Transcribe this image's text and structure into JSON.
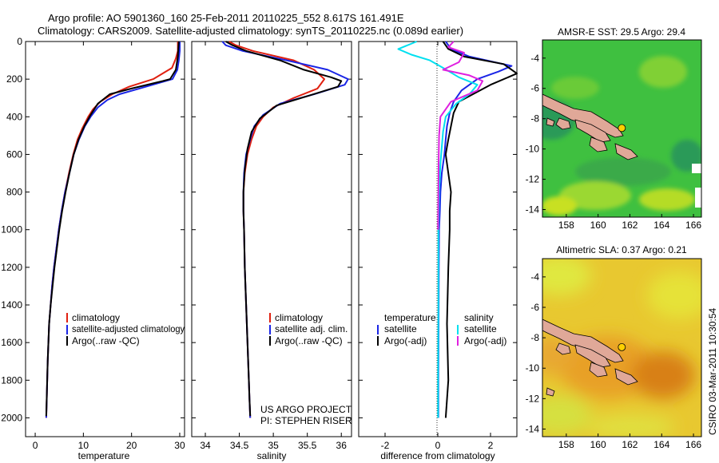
{
  "header": {
    "title_line1": "Argo profile: AO 5901360_160 25-Feb-2011 20110225_552 8.617S 161.491E",
    "title_line2": "Climatology: CARS2009. Satellite-adjusted climatology: synTS_20110225.nc (0.089d earlier)"
  },
  "footer": {
    "stamp": "CSIRO 03-Mar-2011 10:30:54"
  },
  "colors": {
    "climatology": "#e02010",
    "satellite": "#1a25e6",
    "argo": "#000000",
    "sat_salinity": "#00e0f0",
    "argo_salinity": "#e020e0",
    "coast": "#000000",
    "island_fill": "#e0a898"
  },
  "chart_data": [
    {
      "type": "line",
      "xlabel": "temperature",
      "ylabel": "",
      "xlim": [
        -2,
        31
      ],
      "ylim": [
        0,
        2100
      ],
      "xticks": [
        "0",
        "10",
        "20",
        "30"
      ],
      "yticks": [
        "0",
        "200",
        "400",
        "600",
        "800",
        "1000",
        "1200",
        "1400",
        "1600",
        "1800",
        "2000"
      ],
      "legend": [
        "climatology",
        "satellite-adjusted climatology",
        "Argo(..raw -QC)"
      ],
      "legend_position": "lower-right",
      "series": [
        {
          "name": "climatology",
          "color": "#e02010",
          "x": [
            29.6,
            29.6,
            29.2,
            28.4,
            24.5,
            19.5,
            16,
            13.5,
            12,
            11,
            9.8,
            8.8,
            7.9,
            7,
            6.2,
            5.5,
            4.9,
            4.4,
            3.9,
            3.5,
            3.2,
            2.9,
            2.6,
            2.3
          ],
          "y": [
            0,
            50,
            90,
            140,
            200,
            240,
            280,
            320,
            360,
            400,
            460,
            520,
            600,
            700,
            800,
            900,
            1000,
            1100,
            1200,
            1300,
            1400,
            1500,
            1700,
            2000
          ]
        },
        {
          "name": "satellite-adjusted climatology",
          "color": "#1a25e6",
          "x": [
            30,
            30,
            29.8,
            29.5,
            28.5,
            23,
            17.5,
            15,
            13,
            11.5,
            10.3,
            9.1,
            8,
            7.1,
            6.2,
            5.5,
            4.9,
            4.4,
            3.9,
            3.5,
            3.2,
            2.9,
            2.6,
            2.3
          ],
          "y": [
            0,
            50,
            100,
            150,
            200,
            240,
            280,
            310,
            350,
            400,
            450,
            520,
            600,
            700,
            800,
            900,
            1000,
            1100,
            1200,
            1300,
            1400,
            1500,
            1700,
            2000
          ]
        },
        {
          "name": "Argo(..raw -QC)",
          "color": "#000000",
          "x": [
            29.8,
            29.7,
            29.6,
            29.2,
            28,
            26.5,
            20,
            15.5,
            13,
            11.5,
            10.2,
            9,
            8,
            7.1,
            6.3,
            5.6,
            5,
            4.5,
            4,
            3.6,
            3.2,
            2.9,
            2.6,
            2.3
          ],
          "y": [
            0,
            40,
            80,
            150,
            200,
            210,
            250,
            280,
            330,
            390,
            450,
            520,
            600,
            700,
            800,
            900,
            1000,
            1100,
            1200,
            1300,
            1400,
            1500,
            1700,
            1990
          ]
        }
      ]
    },
    {
      "type": "line",
      "xlabel": "salinity",
      "xlim": [
        33.8,
        36.15
      ],
      "ylim": [
        0,
        2100
      ],
      "xticks": [
        "34",
        "34.5",
        "35",
        "35.5",
        "36"
      ],
      "legend": [
        "climatology",
        "satellite adj. clim.",
        "Argo(..raw -QC)"
      ],
      "legend_position": "lower-right",
      "annotations": [
        "US ARGO PROJECT",
        "PI: STEPHEN RISER"
      ],
      "series": [
        {
          "name": "climatology",
          "color": "#e02010",
          "x": [
            34.35,
            34.45,
            34.7,
            35.3,
            35.6,
            35.75,
            35.65,
            35.3,
            35.0,
            34.85,
            34.75,
            34.68,
            34.62,
            34.58,
            34.56,
            34.56,
            34.57,
            34.58,
            34.6,
            34.62,
            34.64,
            34.65,
            34.66
          ],
          "y": [
            0,
            20,
            50,
            100,
            150,
            200,
            250,
            300,
            350,
            400,
            450,
            520,
            600,
            700,
            800,
            900,
            1000,
            1200,
            1400,
            1600,
            1800,
            1900,
            2000
          ]
        },
        {
          "name": "satellite adj. clim.",
          "color": "#1a25e6",
          "x": [
            34.25,
            34.3,
            34.55,
            35.2,
            35.8,
            36.1,
            36.05,
            35.6,
            35.1,
            34.85,
            34.72,
            34.66,
            34.6,
            34.57,
            34.56,
            34.56,
            34.57,
            34.58,
            34.6,
            34.62,
            34.64,
            34.65,
            34.66
          ],
          "y": [
            0,
            20,
            50,
            100,
            150,
            200,
            230,
            280,
            330,
            390,
            450,
            520,
            600,
            700,
            800,
            900,
            1000,
            1200,
            1400,
            1600,
            1800,
            1900,
            2000
          ]
        },
        {
          "name": "Argo(..raw -QC)",
          "color": "#000000",
          "x": [
            34.3,
            34.4,
            34.6,
            35.1,
            35.45,
            35.85,
            36.0,
            35.95,
            35.5,
            35.05,
            34.8,
            34.68,
            34.62,
            34.58,
            34.56,
            34.56,
            34.57,
            34.58,
            34.6,
            34.62,
            34.64,
            34.65,
            34.66
          ],
          "y": [
            0,
            20,
            50,
            100,
            150,
            190,
            210,
            240,
            290,
            340,
            410,
            480,
            570,
            680,
            800,
            900,
            1000,
            1200,
            1400,
            1600,
            1800,
            1900,
            1990
          ]
        }
      ]
    },
    {
      "type": "line",
      "xlabel": "difference from climatology",
      "xlim": [
        -3,
        3
      ],
      "ylim": [
        0,
        2100
      ],
      "xticks": [
        "-2",
        "0",
        "2"
      ],
      "legend": [
        "temperature",
        "satellite",
        "Argo(-adj)",
        "salinity",
        "satellite",
        "Argo(-adj)"
      ],
      "legend_position": "lower-center",
      "series": [
        {
          "name": "satellite",
          "group": "temperature",
          "color": "#1a25e6",
          "x": [
            0.3,
            0.5,
            1.2,
            2.8,
            2.3,
            1.5,
            0.9,
            0.6,
            0.45,
            0.35,
            0.3,
            0.25,
            0.15,
            0.1,
            0.08,
            0.05,
            0.04,
            0.03,
            0.02,
            0.02
          ],
          "y": [
            0,
            40,
            80,
            130,
            160,
            200,
            260,
            320,
            380,
            450,
            520,
            600,
            700,
            800,
            900,
            1000,
            1200,
            1500,
            1800,
            2000
          ]
        },
        {
          "name": "Argo(-adj)",
          "group": "temperature",
          "color": "#000000",
          "x": [
            0.2,
            0.4,
            1.0,
            2.5,
            3.0,
            2.0,
            0.8,
            0.6,
            0.5,
            0.4,
            0.35,
            0.3,
            0.4,
            0.5,
            0.45,
            0.45,
            0.4,
            0.35,
            0.4,
            0.3
          ],
          "y": [
            0,
            40,
            80,
            120,
            170,
            230,
            320,
            380,
            450,
            520,
            560,
            600,
            700,
            800,
            900,
            1000,
            1200,
            1500,
            1800,
            2000
          ]
        },
        {
          "name": "satellite",
          "group": "salinity",
          "color": "#00e0f0",
          "x": [
            -0.8,
            -1.5,
            -1.0,
            -0.3,
            0.2,
            0.8,
            1.5,
            1.2,
            0.7,
            0.3,
            0.2,
            0.15,
            0.1,
            0.05,
            0.02,
            0.02,
            0.01,
            0.01
          ],
          "y": [
            0,
            40,
            70,
            100,
            140,
            190,
            230,
            280,
            330,
            400,
            480,
            560,
            650,
            800,
            1000,
            1400,
            1800,
            2000
          ]
        },
        {
          "name": "Argo(-adj)",
          "group": "salinity",
          "color": "#e020e0",
          "x": [
            0.6,
            0.4,
            1.0,
            0.8,
            0.2,
            1.2,
            1.7,
            1.5,
            0.5,
            0.1,
            0.05,
            0.03,
            0.02,
            0.01
          ],
          "y": [
            0,
            30,
            60,
            110,
            150,
            180,
            210,
            260,
            320,
            400,
            500,
            650,
            800,
            1000
          ]
        }
      ]
    },
    {
      "type": "heatmap",
      "title": "AMSR-E SST: 29.5 Argo: 29.4",
      "xticks": [
        "158",
        "160",
        "162",
        "164",
        "166"
      ],
      "yticks": [
        "-4",
        "-6",
        "-8",
        "-10",
        "-12",
        "-14"
      ],
      "xlim": [
        156.5,
        166.5
      ],
      "ylim": [
        -14.5,
        -2.8
      ],
      "argo_position": {
        "lon": 161.491,
        "lat": -8.617
      },
      "colormap": "green-yellow"
    },
    {
      "type": "heatmap",
      "title": "Altimetric SLA: 0.37 Argo: 0.21",
      "xticks": [
        "158",
        "160",
        "162",
        "164",
        "166"
      ],
      "yticks": [
        "-4",
        "-6",
        "-8",
        "-10",
        "-12",
        "-14"
      ],
      "xlim": [
        156.5,
        166.5
      ],
      "ylim": [
        -14.5,
        -2.8
      ],
      "argo_position": {
        "lon": 161.491,
        "lat": -8.617
      },
      "colormap": "yellow-orange"
    }
  ]
}
